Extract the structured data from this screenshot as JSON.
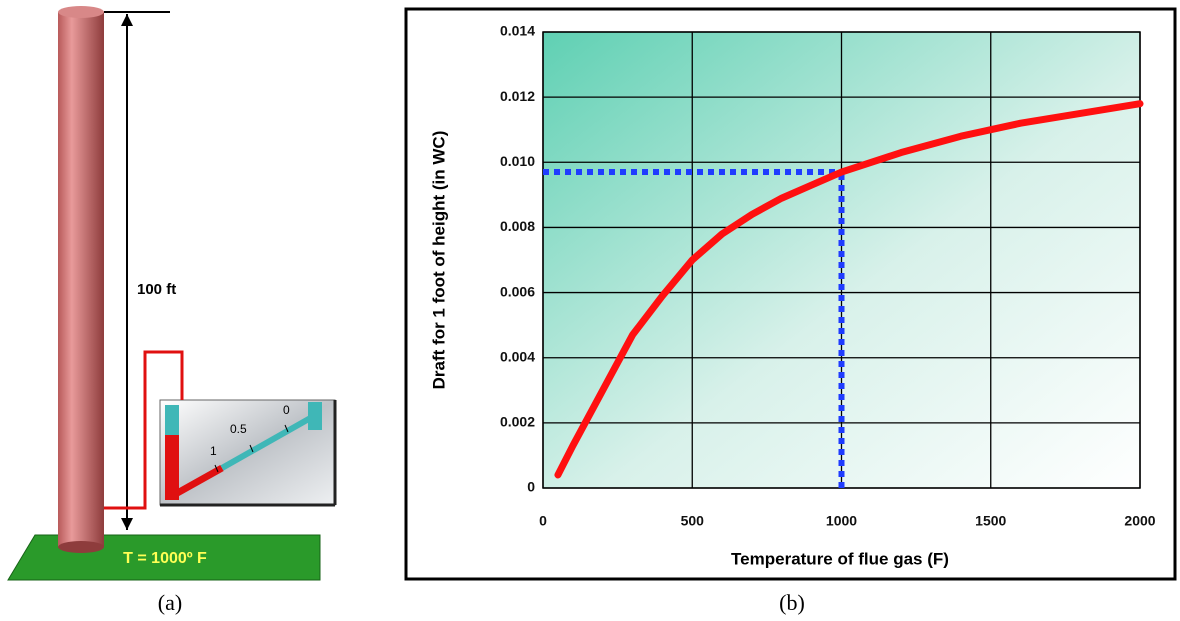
{
  "chart_data": {
    "type": "line",
    "xlabel": "Temperature of flue gas (F)",
    "ylabel": "Draft for 1 foot of  height (in WC)",
    "x": [
      50,
      100,
      200,
      300,
      400,
      500,
      600,
      700,
      800,
      900,
      1000,
      1200,
      1400,
      1500,
      1600,
      1800,
      2000
    ],
    "series": [
      {
        "color": "#ff1010",
        "values": [
          0.0004,
          0.0013,
          0.003,
          0.0047,
          0.0059,
          0.007,
          0.0078,
          0.0084,
          0.0089,
          0.0093,
          0.0097,
          0.0103,
          0.0108,
          0.011,
          0.0112,
          0.0115,
          0.0118
        ]
      }
    ],
    "highlight": {
      "x": 1000,
      "y": 0.0097,
      "color": "#1f3cff"
    },
    "xlim": [
      0,
      2000
    ],
    "xticks": [
      0,
      500,
      1000,
      1500,
      2000
    ],
    "ylim": [
      0,
      0.014
    ],
    "yticks": [
      0,
      0.002,
      0.004,
      0.006,
      {
        "value": 0.01,
        "label": "0.010"
      },
      0.008,
      0.012,
      0.014
    ],
    "grid": true
  },
  "diagram": {
    "height_label": "100 ft",
    "temperature_label": "T = 1000º F",
    "scale_labels": [
      "1",
      "0.5",
      "0"
    ],
    "captions": [
      "(a)",
      "(b)"
    ]
  }
}
